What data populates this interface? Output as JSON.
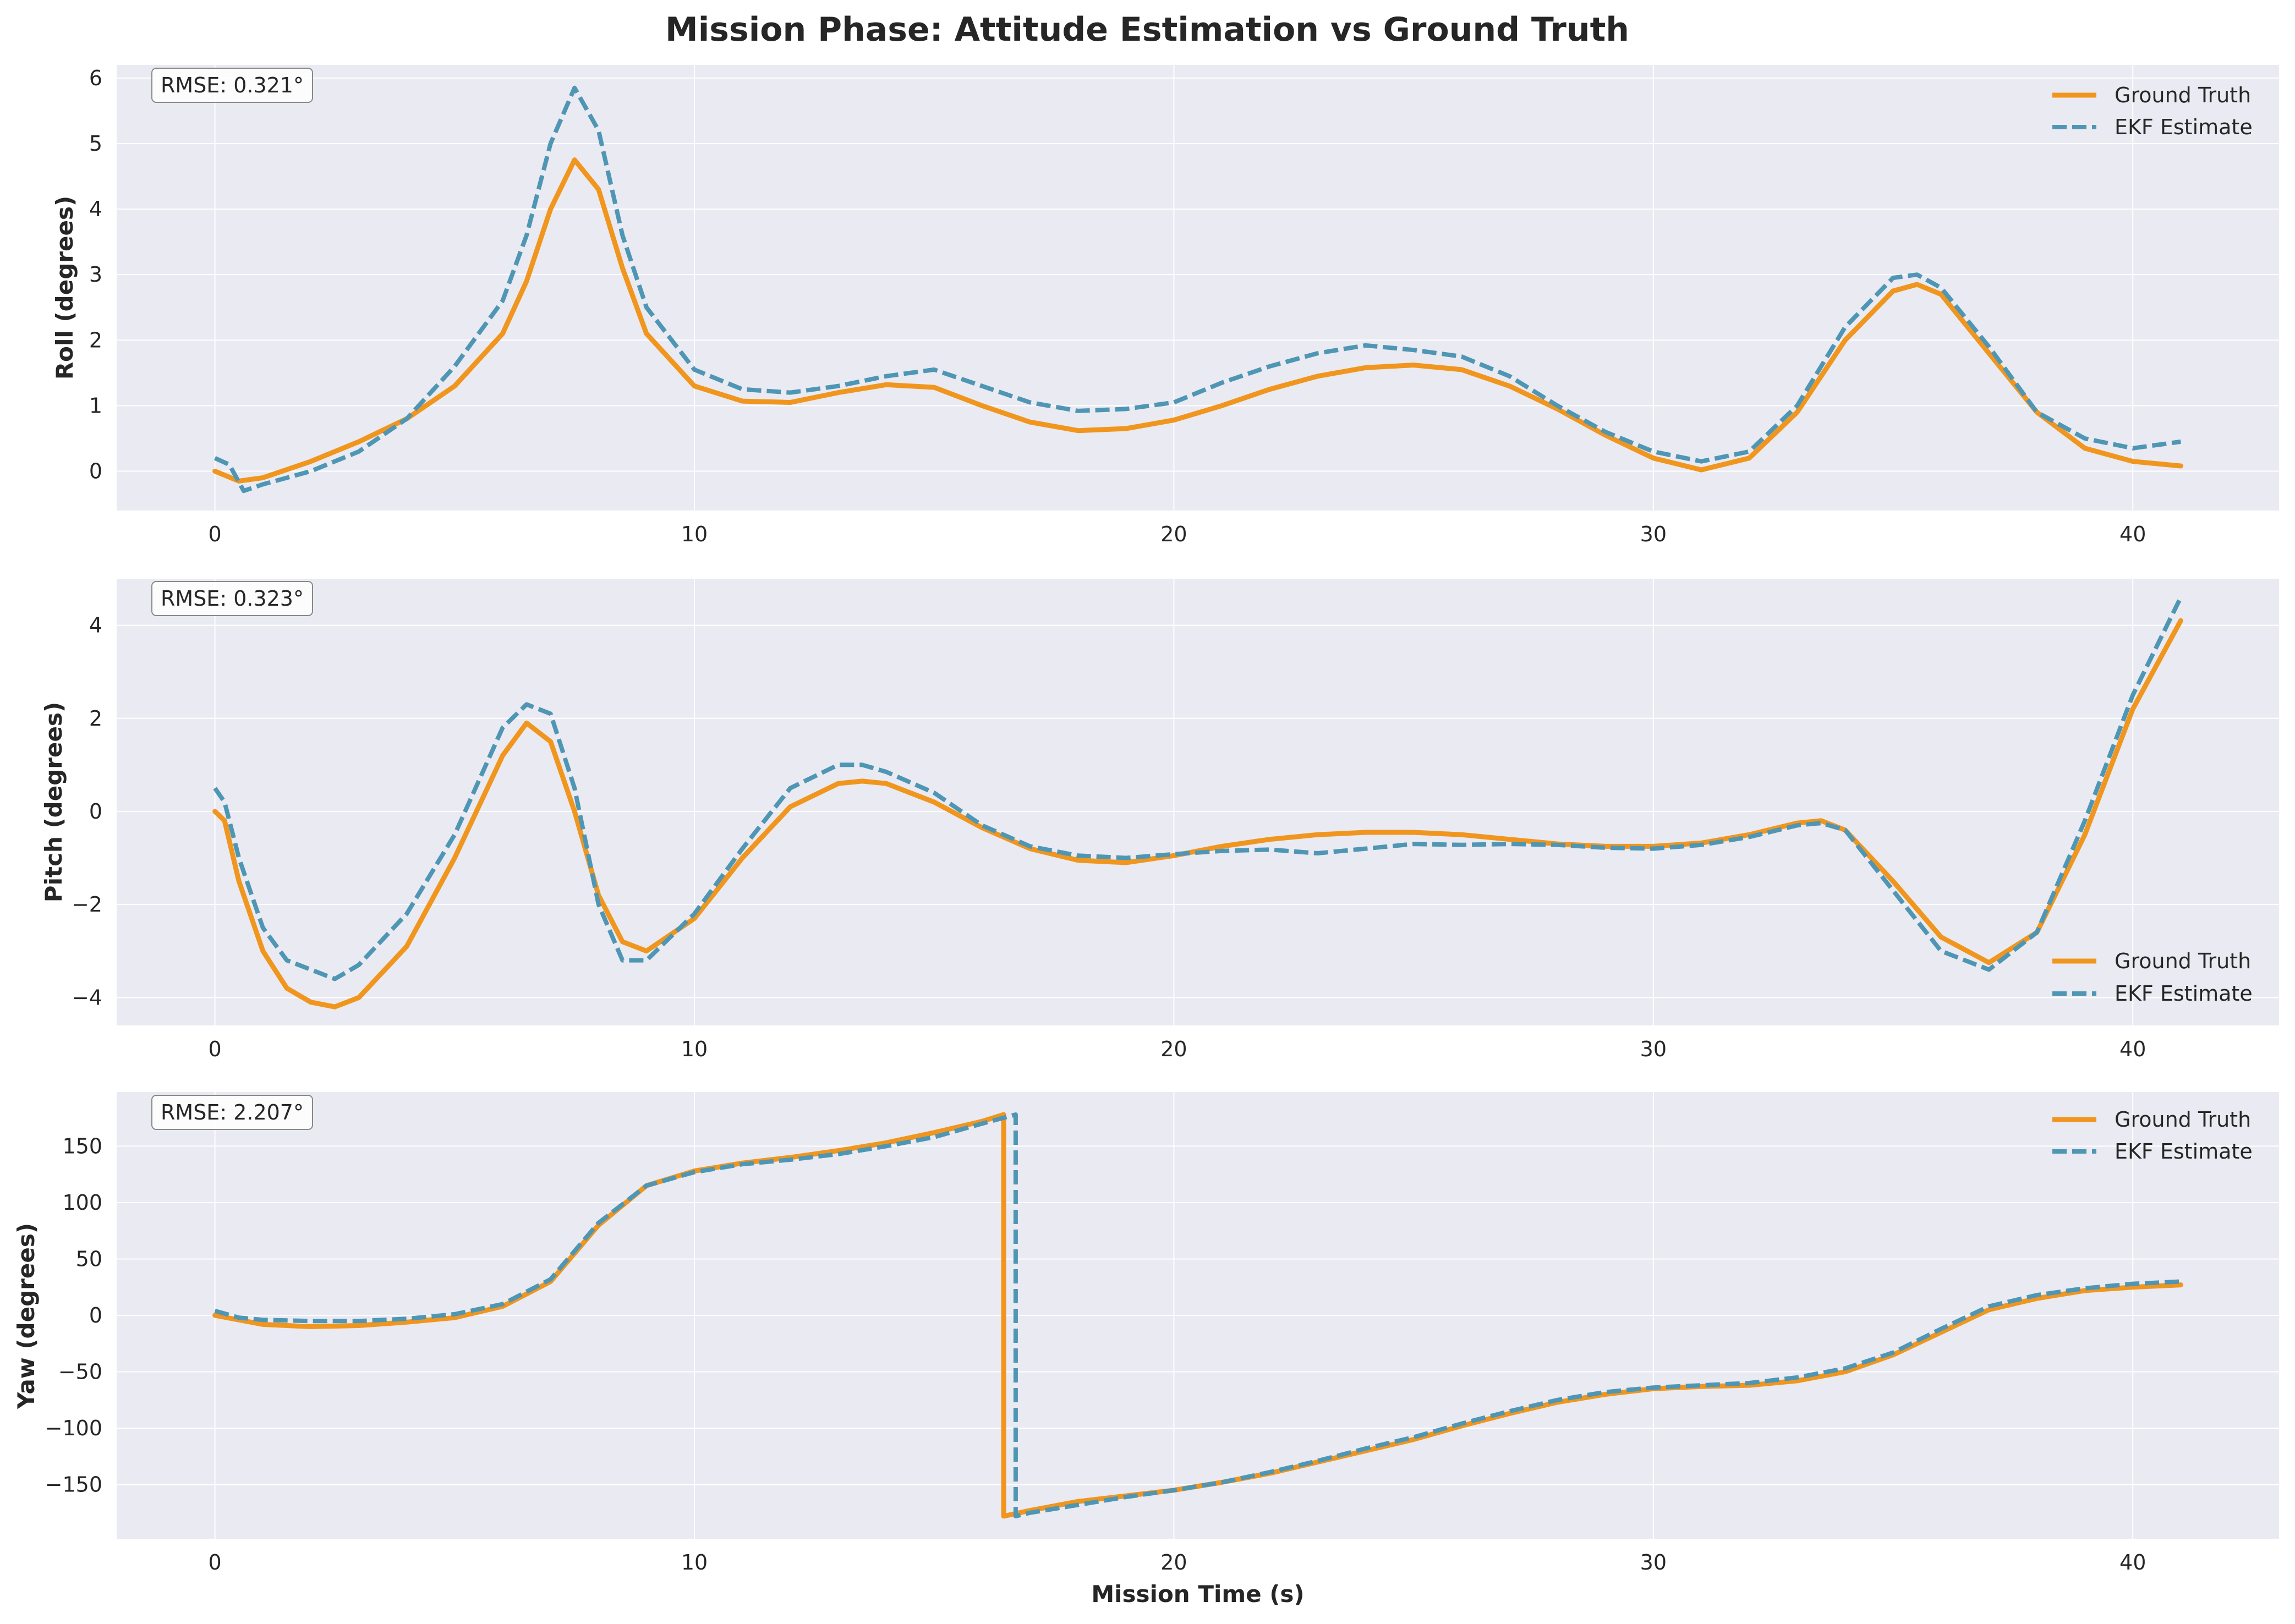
{
  "figure": {
    "title": "Mission Phase: Attitude Estimation vs Ground Truth",
    "colors": {
      "ground_truth": "#f0961e",
      "estimate": "#4f96b4",
      "plot_bg": "#eaeaf2",
      "text": "#262626"
    }
  },
  "chart_data": [
    {
      "type": "line",
      "ylabel": "Roll (degrees)",
      "xlabel": "",
      "xlim": [
        -2.05,
        43.05
      ],
      "ylim": [
        -0.6,
        6.2
      ],
      "xticks": [
        0,
        10,
        20,
        30,
        40
      ],
      "yticks": [
        0,
        1,
        2,
        3,
        4,
        5,
        6
      ],
      "ytick_labels": [
        "0",
        "1",
        "2",
        "3",
        "4",
        "5",
        "6"
      ],
      "grid": true,
      "legend_position": "upper right",
      "annotation": "RMSE: 0.321°",
      "series": [
        {
          "name": "Ground Truth",
          "style": "solid",
          "color": "#f0961e",
          "x": [
            0,
            0.5,
            1,
            2,
            3,
            4,
            5,
            6,
            6.5,
            7,
            7.5,
            8,
            8.5,
            9,
            10,
            11,
            12,
            13,
            14,
            15,
            16,
            17,
            18,
            19,
            20,
            21,
            22,
            23,
            24,
            25,
            26,
            27,
            28,
            29,
            30,
            31,
            32,
            33,
            34,
            35,
            35.5,
            36,
            37,
            38,
            39,
            40,
            41
          ],
          "y": [
            0,
            -0.15,
            -0.1,
            0.15,
            0.45,
            0.8,
            1.3,
            2.1,
            2.9,
            4.0,
            4.75,
            4.3,
            3.1,
            2.1,
            1.3,
            1.07,
            1.05,
            1.2,
            1.32,
            1.28,
            1.0,
            0.75,
            0.62,
            0.65,
            0.78,
            1.0,
            1.25,
            1.45,
            1.58,
            1.62,
            1.55,
            1.3,
            0.95,
            0.55,
            0.2,
            0.02,
            0.2,
            0.9,
            2.0,
            2.75,
            2.85,
            2.7,
            1.8,
            0.9,
            0.35,
            0.15,
            0.08
          ]
        },
        {
          "name": "EKF Estimate",
          "style": "dashed",
          "color": "#4f96b4",
          "x": [
            0,
            0.3,
            0.6,
            1,
            2,
            3,
            4,
            5,
            6,
            6.5,
            7,
            7.5,
            8,
            8.5,
            9,
            10,
            11,
            12,
            13,
            14,
            15,
            16,
            17,
            18,
            19,
            20,
            21,
            22,
            23,
            24,
            25,
            26,
            27,
            28,
            29,
            30,
            31,
            32,
            33,
            34,
            35,
            35.5,
            36,
            37,
            38,
            39,
            40,
            41
          ],
          "y": [
            0.2,
            0.1,
            -0.3,
            -0.2,
            0.0,
            0.3,
            0.8,
            1.6,
            2.6,
            3.6,
            5.0,
            5.85,
            5.2,
            3.6,
            2.5,
            1.55,
            1.25,
            1.2,
            1.3,
            1.45,
            1.55,
            1.3,
            1.05,
            0.92,
            0.95,
            1.05,
            1.35,
            1.6,
            1.8,
            1.92,
            1.85,
            1.75,
            1.45,
            1.0,
            0.6,
            0.3,
            0.15,
            0.3,
            1.0,
            2.2,
            2.95,
            3.0,
            2.8,
            1.9,
            0.9,
            0.5,
            0.35,
            0.45
          ]
        }
      ]
    },
    {
      "type": "line",
      "ylabel": "Pitch (degrees)",
      "xlabel": "",
      "xlim": [
        -2.05,
        43.05
      ],
      "ylim": [
        -4.6,
        5.0
      ],
      "xticks": [
        0,
        10,
        20,
        30,
        40
      ],
      "yticks": [
        -4,
        -2,
        0,
        2,
        4
      ],
      "ytick_labels": [
        "−4",
        "−2",
        "0",
        "2",
        "4"
      ],
      "grid": true,
      "legend_position": "lower right",
      "annotation": "RMSE: 0.323°",
      "series": [
        {
          "name": "Ground Truth",
          "style": "solid",
          "color": "#f0961e",
          "x": [
            0,
            0.2,
            0.5,
            1,
            1.5,
            2,
            2.5,
            3,
            4,
            5,
            6,
            6.5,
            7,
            7.5,
            8,
            8.5,
            9,
            10,
            11,
            12,
            13,
            13.5,
            14,
            15,
            16,
            17,
            18,
            19,
            20,
            21,
            22,
            23,
            24,
            25,
            26,
            27,
            28,
            29,
            30,
            31,
            32,
            33,
            33.5,
            34,
            35,
            36,
            37,
            38,
            39,
            40,
            41
          ],
          "y": [
            0,
            -0.2,
            -1.5,
            -3.0,
            -3.8,
            -4.1,
            -4.2,
            -4.0,
            -2.9,
            -1.0,
            1.2,
            1.9,
            1.5,
            0.0,
            -1.8,
            -2.8,
            -3.0,
            -2.3,
            -1.0,
            0.1,
            0.6,
            0.65,
            0.6,
            0.2,
            -0.35,
            -0.8,
            -1.05,
            -1.1,
            -0.95,
            -0.75,
            -0.6,
            -0.5,
            -0.45,
            -0.45,
            -0.5,
            -0.6,
            -0.7,
            -0.75,
            -0.75,
            -0.68,
            -0.5,
            -0.25,
            -0.2,
            -0.4,
            -1.5,
            -2.7,
            -3.25,
            -2.6,
            -0.5,
            2.2,
            4.1
          ]
        },
        {
          "name": "EKF Estimate",
          "style": "dashed",
          "color": "#4f96b4",
          "x": [
            0,
            0.2,
            0.5,
            1,
            1.5,
            2,
            2.5,
            3,
            4,
            5,
            6,
            6.5,
            7,
            7.5,
            8,
            8.5,
            9,
            10,
            11,
            12,
            13,
            13.5,
            14,
            15,
            16,
            17,
            18,
            19,
            20,
            21,
            22,
            23,
            24,
            25,
            26,
            27,
            28,
            29,
            30,
            31,
            32,
            33,
            33.5,
            34,
            35,
            36,
            37,
            38,
            39,
            40,
            41
          ],
          "y": [
            0.5,
            0.2,
            -1.0,
            -2.5,
            -3.2,
            -3.4,
            -3.6,
            -3.3,
            -2.2,
            -0.5,
            1.8,
            2.3,
            2.1,
            0.5,
            -2.0,
            -3.2,
            -3.2,
            -2.2,
            -0.8,
            0.5,
            1.0,
            1.0,
            0.85,
            0.4,
            -0.3,
            -0.75,
            -0.95,
            -1.0,
            -0.92,
            -0.85,
            -0.82,
            -0.9,
            -0.8,
            -0.7,
            -0.72,
            -0.7,
            -0.72,
            -0.78,
            -0.8,
            -0.72,
            -0.55,
            -0.3,
            -0.25,
            -0.4,
            -1.7,
            -3.0,
            -3.4,
            -2.6,
            -0.2,
            2.5,
            4.6
          ]
        }
      ]
    },
    {
      "type": "line",
      "ylabel": "Yaw (degrees)",
      "xlabel": "Mission Time (s)",
      "xlim": [
        -2.05,
        43.05
      ],
      "ylim": [
        -198,
        198
      ],
      "xticks": [
        0,
        10,
        20,
        30,
        40
      ],
      "yticks": [
        -150,
        -100,
        -50,
        0,
        50,
        100,
        150
      ],
      "ytick_labels": [
        "−150",
        "−100",
        "−50",
        "0",
        "50",
        "100",
        "150"
      ],
      "grid": true,
      "legend_position": "upper right",
      "annotation": "RMSE: 2.207°",
      "series": [
        {
          "name": "Ground Truth",
          "style": "solid",
          "color": "#f0961e",
          "x": [
            0,
            1,
            2,
            3,
            4,
            5,
            6,
            7,
            8,
            9,
            10,
            11,
            12,
            13,
            14,
            15,
            16,
            16.45,
            16.45,
            17,
            18,
            19,
            20,
            21,
            22,
            23,
            24,
            25,
            26,
            27,
            28,
            29,
            30,
            31,
            32,
            33,
            34,
            35,
            36,
            37,
            38,
            39,
            40,
            41
          ],
          "y": [
            0,
            -8,
            -10,
            -9,
            -6,
            -2,
            8,
            30,
            80,
            115,
            128,
            135,
            140,
            146,
            153,
            162,
            172,
            178,
            -178,
            -173,
            -165,
            -160,
            -155,
            -148,
            -140,
            -130,
            -120,
            -110,
            -98,
            -87,
            -77,
            -70,
            -65,
            -63,
            -62,
            -58,
            -50,
            -35,
            -15,
            5,
            15,
            22,
            25,
            27
          ]
        },
        {
          "name": "EKF Estimate",
          "style": "dashed",
          "color": "#4f96b4",
          "x": [
            0,
            0.5,
            1,
            2,
            3,
            4,
            5,
            6,
            7,
            8,
            9,
            10,
            11,
            12,
            13,
            14,
            15,
            16,
            16.7,
            16.7,
            17,
            18,
            19,
            20,
            21,
            22,
            23,
            24,
            25,
            26,
            27,
            28,
            29,
            30,
            31,
            32,
            33,
            34,
            35,
            36,
            37,
            38,
            39,
            40,
            41
          ],
          "y": [
            4,
            -2,
            -4,
            -5,
            -5,
            -3,
            1,
            10,
            32,
            82,
            115,
            127,
            134,
            138,
            143,
            150,
            158,
            170,
            178,
            -178,
            -175,
            -168,
            -161,
            -155,
            -148,
            -139,
            -129,
            -118,
            -108,
            -96,
            -85,
            -75,
            -68,
            -64,
            -62,
            -60,
            -55,
            -47,
            -33,
            -12,
            8,
            18,
            24,
            28,
            30
          ]
        }
      ]
    }
  ]
}
